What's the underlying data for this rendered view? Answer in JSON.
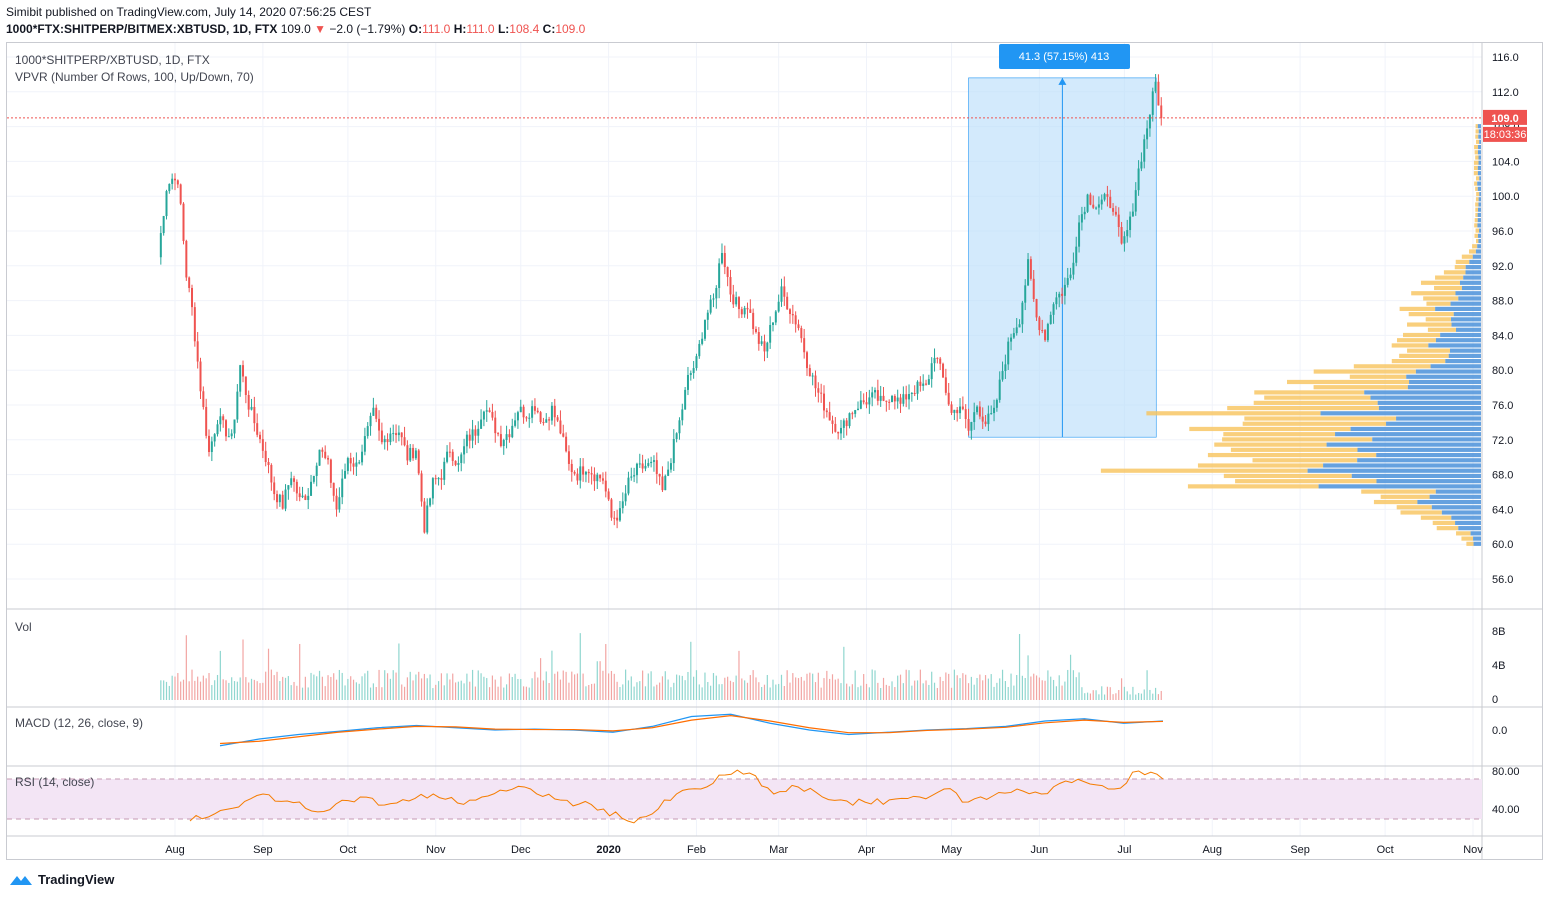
{
  "header": {
    "publish_line": "Simibit published on TradingView.com, July 14, 2020 07:56:25 CEST",
    "symbol": "1000*FTX:SHITPERP/BITMEX:XBTUSD, 1D, FTX",
    "price": "109.0",
    "arrow": "▼",
    "change": "−2.0 (−1.79%)",
    "o_label": "O:",
    "o": "111.0",
    "h_label": "H:",
    "h": "111.0",
    "l_label": "L:",
    "l": "108.4",
    "c_label": "C:",
    "c": "109.0"
  },
  "legends": {
    "main_title": "1000*SHITPERP/XBTUSD, 1D, FTX",
    "vpvr": "VPVR (Number Of Rows, 100, Up/Down, 70)",
    "vol": "Vol",
    "macd": "MACD (12, 26, close, 9)",
    "rsi": "RSI (14, close)"
  },
  "measure_label": "41.3 (57.15%) 413",
  "price_tag": "109.0",
  "countdown_tag": "18:03:36",
  "footer_brand": "TradingView",
  "colors": {
    "up": "#26a69a",
    "down": "#ef5350",
    "accent": "#2196f3",
    "vp_up": "#f7c35b",
    "vp_down": "#4a90d9",
    "rsi": "#f57c00",
    "macd": "#2196f3",
    "signal": "#ff6d00"
  },
  "chart_data": [
    {
      "type": "candlestick",
      "title": "1000*SHITPERP/XBTUSD, 1D, FTX",
      "y_ticks": [
        "116.0",
        "112.0",
        "108.0",
        "104.0",
        "100.0",
        "96.0",
        "92.0",
        "88.0",
        "84.0",
        "80.0",
        "76.0",
        "72.0",
        "68.0",
        "64.0",
        "60.0",
        "56.0"
      ],
      "x_ticks": [
        "Aug",
        "Sep",
        "Oct",
        "Nov",
        "Dec",
        "2020",
        "Feb",
        "Mar",
        "Apr",
        "May",
        "Jun",
        "Jul",
        "Aug",
        "Sep",
        "Oct",
        "Nov"
      ],
      "ylim": [
        52,
        118
      ],
      "last_price": 109.0,
      "measure": {
        "from": 72.3,
        "to": 113.6,
        "change": 41.3,
        "percent": 57.15,
        "bars": 413
      },
      "series": [
        {
          "date": "2019-07-26",
          "close": 93
        },
        {
          "date": "2019-07-29",
          "close": 101
        },
        {
          "date": "2019-08-01",
          "close": 102.5
        },
        {
          "date": "2019-08-03",
          "close": 99
        },
        {
          "date": "2019-08-05",
          "close": 91
        },
        {
          "date": "2019-08-07",
          "close": 87
        },
        {
          "date": "2019-08-10",
          "close": 78
        },
        {
          "date": "2019-08-13",
          "close": 70.5
        },
        {
          "date": "2019-08-16",
          "close": 74.5
        },
        {
          "date": "2019-08-19",
          "close": 73
        },
        {
          "date": "2019-08-21",
          "close": 72
        },
        {
          "date": "2019-08-24",
          "close": 80.5
        },
        {
          "date": "2019-08-27",
          "close": 76
        },
        {
          "date": "2019-08-30",
          "close": 73
        },
        {
          "date": "2019-09-02",
          "close": 70
        },
        {
          "date": "2019-09-05",
          "close": 66
        },
        {
          "date": "2019-09-08",
          "close": 64.5
        },
        {
          "date": "2019-09-11",
          "close": 68
        },
        {
          "date": "2019-09-14",
          "close": 65
        },
        {
          "date": "2019-09-17",
          "close": 66
        },
        {
          "date": "2019-09-21",
          "close": 71
        },
        {
          "date": "2019-09-24",
          "close": 69
        },
        {
          "date": "2019-09-27",
          "close": 64
        },
        {
          "date": "2019-10-01",
          "close": 70
        },
        {
          "date": "2019-10-04",
          "close": 69
        },
        {
          "date": "2019-10-07",
          "close": 72
        },
        {
          "date": "2019-10-10",
          "close": 75
        },
        {
          "date": "2019-10-13",
          "close": 71.5
        },
        {
          "date": "2019-10-16",
          "close": 73
        },
        {
          "date": "2019-10-19",
          "close": 73
        },
        {
          "date": "2019-10-22",
          "close": 70
        },
        {
          "date": "2019-10-25",
          "close": 71
        },
        {
          "date": "2019-10-28",
          "close": 62
        },
        {
          "date": "2019-10-31",
          "close": 67
        },
        {
          "date": "2019-11-03",
          "close": 68
        },
        {
          "date": "2019-11-06",
          "close": 71
        },
        {
          "date": "2019-11-09",
          "close": 69
        },
        {
          "date": "2019-11-12",
          "close": 72
        },
        {
          "date": "2019-11-15",
          "close": 73
        },
        {
          "date": "2019-11-18",
          "close": 76
        },
        {
          "date": "2019-11-21",
          "close": 74
        },
        {
          "date": "2019-11-24",
          "close": 72
        },
        {
          "date": "2019-11-27",
          "close": 73
        },
        {
          "date": "2019-11-30",
          "close": 75.5
        },
        {
          "date": "2019-12-03",
          "close": 75
        },
        {
          "date": "2019-12-06",
          "close": 76
        },
        {
          "date": "2019-12-09",
          "close": 74
        },
        {
          "date": "2019-12-12",
          "close": 75.5
        },
        {
          "date": "2019-12-15",
          "close": 73
        },
        {
          "date": "2019-12-18",
          "close": 69
        },
        {
          "date": "2019-12-21",
          "close": 68
        },
        {
          "date": "2019-12-24",
          "close": 69
        },
        {
          "date": "2019-12-27",
          "close": 68
        },
        {
          "date": "2019-12-30",
          "close": 67.5
        },
        {
          "date": "2020-01-02",
          "close": 63
        },
        {
          "date": "2020-01-05",
          "close": 63.5
        },
        {
          "date": "2020-01-08",
          "close": 67
        },
        {
          "date": "2020-01-11",
          "close": 68.5
        },
        {
          "date": "2020-01-14",
          "close": 69
        },
        {
          "date": "2020-01-17",
          "close": 69
        },
        {
          "date": "2020-01-20",
          "close": 66
        },
        {
          "date": "2020-01-23",
          "close": 70
        },
        {
          "date": "2020-01-26",
          "close": 74
        },
        {
          "date": "2020-01-29",
          "close": 79
        },
        {
          "date": "2020-02-01",
          "close": 81
        },
        {
          "date": "2020-02-04",
          "close": 86
        },
        {
          "date": "2020-02-07",
          "close": 88
        },
        {
          "date": "2020-02-10",
          "close": 94
        },
        {
          "date": "2020-02-13",
          "close": 89
        },
        {
          "date": "2020-02-16",
          "close": 87
        },
        {
          "date": "2020-02-19",
          "close": 87.5
        },
        {
          "date": "2020-02-22",
          "close": 84
        },
        {
          "date": "2020-02-25",
          "close": 82
        },
        {
          "date": "2020-02-28",
          "close": 86
        },
        {
          "date": "2020-03-02",
          "close": 89
        },
        {
          "date": "2020-03-05",
          "close": 87
        },
        {
          "date": "2020-03-08",
          "close": 85
        },
        {
          "date": "2020-03-11",
          "close": 81
        },
        {
          "date": "2020-03-14",
          "close": 78
        },
        {
          "date": "2020-03-17",
          "close": 76
        },
        {
          "date": "2020-03-20",
          "close": 74
        },
        {
          "date": "2020-03-23",
          "close": 73
        },
        {
          "date": "2020-03-26",
          "close": 75
        },
        {
          "date": "2020-03-29",
          "close": 76
        },
        {
          "date": "2020-04-01",
          "close": 76.5
        },
        {
          "date": "2020-04-04",
          "close": 77
        },
        {
          "date": "2020-04-07",
          "close": 76
        },
        {
          "date": "2020-04-10",
          "close": 77.5
        },
        {
          "date": "2020-04-13",
          "close": 76
        },
        {
          "date": "2020-04-16",
          "close": 77.5
        },
        {
          "date": "2020-04-19",
          "close": 78
        },
        {
          "date": "2020-04-22",
          "close": 78
        },
        {
          "date": "2020-04-25",
          "close": 82
        },
        {
          "date": "2020-04-28",
          "close": 79
        },
        {
          "date": "2020-05-01",
          "close": 75
        },
        {
          "date": "2020-05-04",
          "close": 76
        },
        {
          "date": "2020-05-07",
          "close": 73
        },
        {
          "date": "2020-05-10",
          "close": 76
        },
        {
          "date": "2020-05-13",
          "close": 74
        },
        {
          "date": "2020-05-16",
          "close": 75
        },
        {
          "date": "2020-05-19",
          "close": 80
        },
        {
          "date": "2020-05-22",
          "close": 84
        },
        {
          "date": "2020-05-25",
          "close": 86
        },
        {
          "date": "2020-05-28",
          "close": 92
        },
        {
          "date": "2020-05-31",
          "close": 86
        },
        {
          "date": "2020-06-03",
          "close": 84
        },
        {
          "date": "2020-06-06",
          "close": 88
        },
        {
          "date": "2020-06-09",
          "close": 89
        },
        {
          "date": "2020-06-12",
          "close": 91
        },
        {
          "date": "2020-06-15",
          "close": 97
        },
        {
          "date": "2020-06-18",
          "close": 100
        },
        {
          "date": "2020-06-21",
          "close": 99
        },
        {
          "date": "2020-06-24",
          "close": 99.5
        },
        {
          "date": "2020-06-27",
          "close": 99
        },
        {
          "date": "2020-06-30",
          "close": 94
        },
        {
          "date": "2020-07-03",
          "close": 97
        },
        {
          "date": "2020-07-06",
          "close": 103
        },
        {
          "date": "2020-07-09",
          "close": 108
        },
        {
          "date": "2020-07-12",
          "close": 113
        },
        {
          "date": "2020-07-14",
          "close": 109
        }
      ]
    },
    {
      "type": "bar",
      "title": "Vol",
      "y_ticks": [
        "8B",
        "4B",
        "0"
      ],
      "ylim": [
        0,
        10
      ]
    },
    {
      "type": "line",
      "title": "MACD (12, 26, close, 9)",
      "y_ticks": [
        "0.0"
      ],
      "series": [
        {
          "name": "MACD",
          "values": [
            -3.5,
            -2,
            -1,
            -0.3,
            0.5,
            1,
            0.5,
            0,
            0.2,
            0,
            -0.5,
            0.8,
            3,
            3.5,
            1.5,
            0,
            -1,
            -0.5,
            0,
            0.3,
            0.8,
            2,
            2.5,
            1.5,
            2
          ]
        },
        {
          "name": "Signal",
          "values": [
            -3,
            -2.5,
            -1.5,
            -0.5,
            0.2,
            0.8,
            0.7,
            0.2,
            0.1,
            0.1,
            -0.2,
            0.5,
            2.2,
            3.2,
            2,
            0.5,
            -0.6,
            -0.6,
            -0.1,
            0.2,
            0.6,
            1.6,
            2.2,
            1.7,
            1.9
          ]
        }
      ]
    },
    {
      "type": "line",
      "title": "RSI (14, close)",
      "y_ticks": [
        "80.00",
        "40.00"
      ],
      "band": [
        30,
        70
      ],
      "series": [
        {
          "name": "RSI",
          "values": [
            28,
            35,
            42,
            55,
            48,
            38,
            45,
            52,
            44,
            48,
            55,
            46,
            52,
            58,
            60,
            50,
            45,
            40,
            28,
            35,
            55,
            60,
            74,
            76,
            55,
            62,
            52,
            48,
            45,
            50,
            52,
            60,
            47,
            53,
            60,
            55,
            68,
            65,
            60,
            78,
            70
          ]
        }
      ]
    }
  ]
}
